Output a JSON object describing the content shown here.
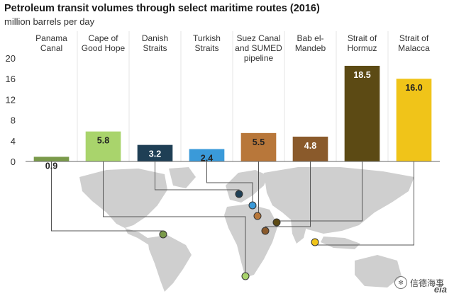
{
  "chart_data": {
    "type": "bar",
    "title": "Petroleum transit volumes through select maritime routes (2016)",
    "subtitle": "million barrels per day",
    "categories": [
      [
        "Panama",
        "Canal"
      ],
      [
        "Cape of",
        "Good Hope"
      ],
      [
        "Danish",
        "Straits"
      ],
      [
        "Turkish",
        "Straits"
      ],
      [
        "Suez Canal",
        "and SUMED",
        "pipeline"
      ],
      [
        "Bab el-",
        "Mandeb"
      ],
      [
        "Strait of",
        "Hormuz"
      ],
      [
        "Strait of",
        "Malacca"
      ]
    ],
    "values": [
      0.9,
      5.8,
      3.2,
      2.4,
      5.5,
      4.8,
      18.5,
      16.0
    ],
    "value_labels": [
      "0.9",
      "5.8",
      "3.2",
      "2.4",
      "5.5",
      "4.8",
      "18.5",
      "16.0"
    ],
    "colors": [
      "#7a9a4a",
      "#a9d46c",
      "#1f3f55",
      "#3a9ad9",
      "#b8773a",
      "#8a5a2b",
      "#5c4a14",
      "#f0c419"
    ],
    "label_colors": [
      "#222222",
      "#222222",
      "#ffffff",
      "#222222",
      "#222222",
      "#ffffff",
      "#ffffff",
      "#222222"
    ],
    "ylim": [
      0,
      20
    ],
    "yticks": [
      0,
      4,
      8,
      12,
      16,
      20
    ],
    "ytick_labels": [
      "0",
      "4",
      "8",
      "12",
      "16",
      "20"
    ],
    "grid": false,
    "legend": "none",
    "map_color": "#cfcfcf"
  },
  "watermark": {
    "text": "信德海事",
    "logo_text": "eia"
  }
}
